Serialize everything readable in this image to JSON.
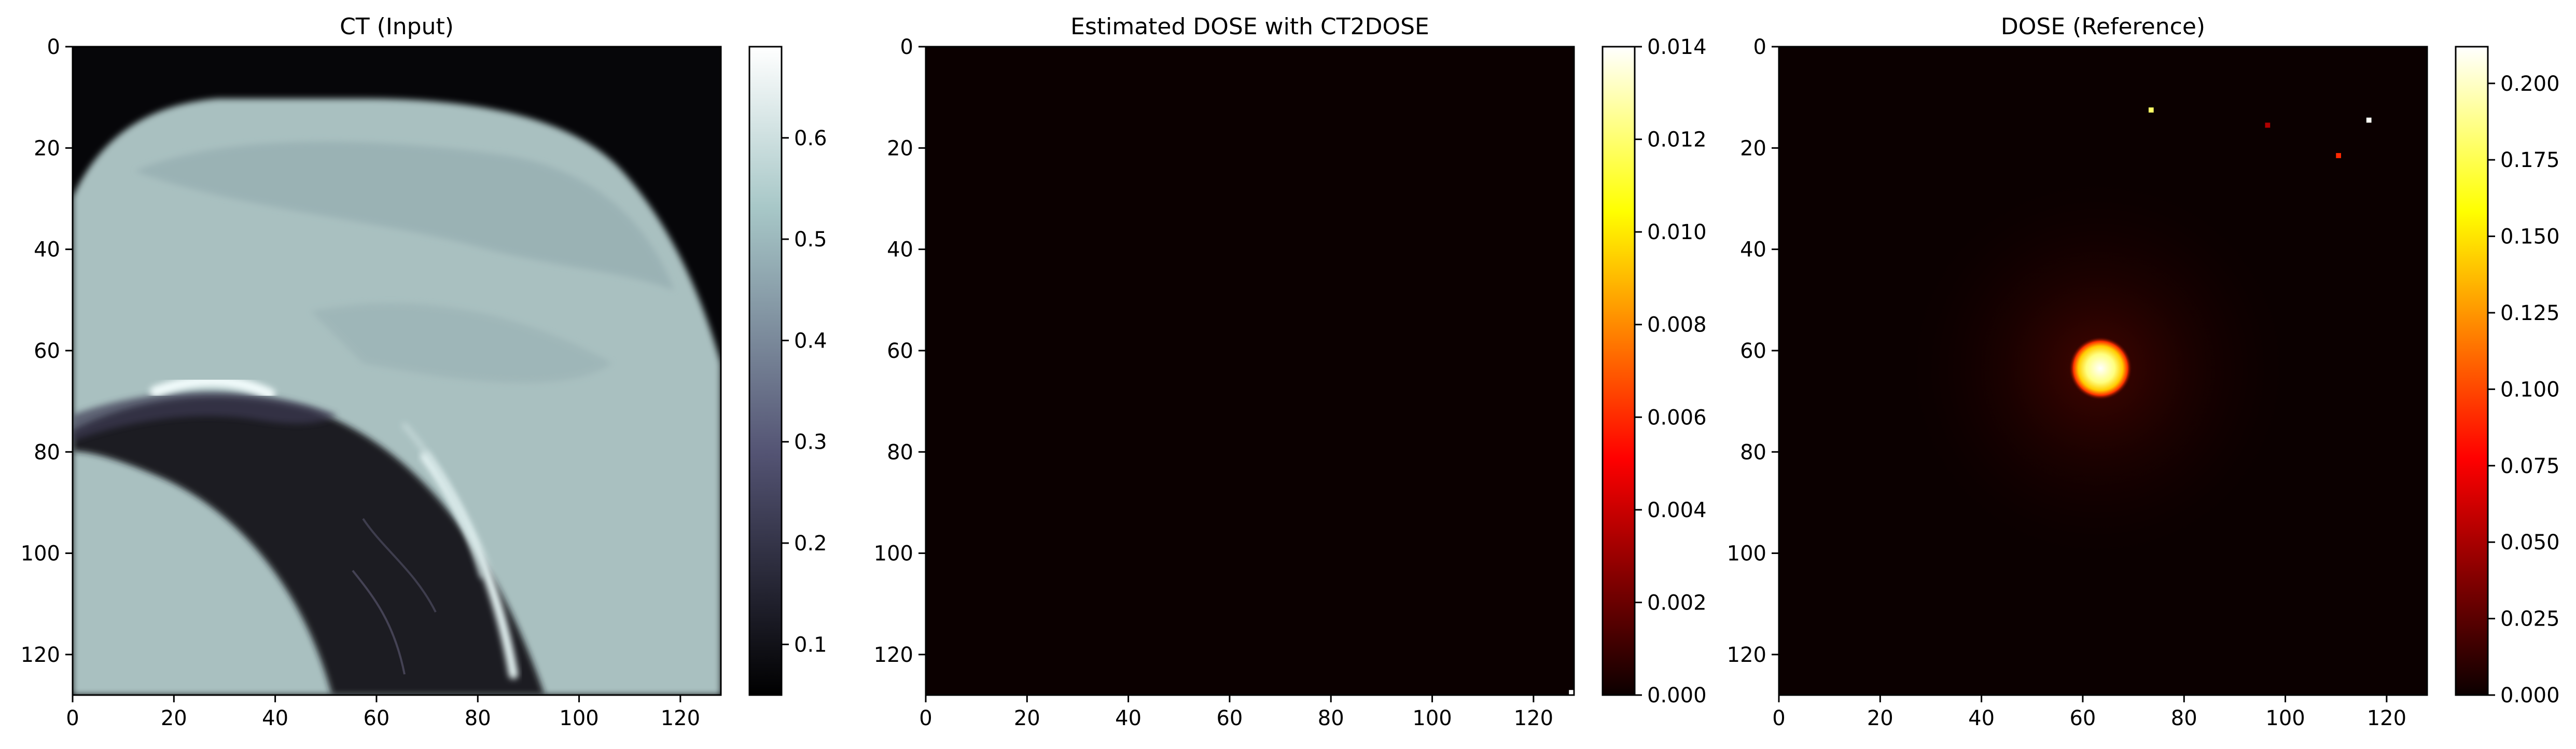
{
  "chart_data": [
    {
      "type": "heatmap",
      "title": "CT (Input)",
      "xlabel": "",
      "ylabel": "",
      "xlim": [
        0,
        128
      ],
      "ylim": [
        128,
        0
      ],
      "x_ticks": [
        0,
        20,
        40,
        60,
        80,
        100,
        120
      ],
      "y_ticks": [
        0,
        20,
        40,
        60,
        80,
        100,
        120
      ],
      "colormap": "bone",
      "colorbar": {
        "range": [
          0.05,
          0.69
        ],
        "ticks": [
          "0.1",
          "0.2",
          "0.3",
          "0.4",
          "0.5",
          "0.6"
        ],
        "tick_values": [
          0.1,
          0.2,
          0.3,
          0.4,
          0.5,
          0.6
        ]
      },
      "image_description_regions": {
        "background_value": 0.05,
        "body_value": 0.5,
        "soft_tissue_value": 0.45,
        "lung_value": 0.1,
        "bright_rim_value": 0.69
      }
    },
    {
      "type": "heatmap",
      "title": "Estimated DOSE with CT2DOSE",
      "xlabel": "",
      "ylabel": "",
      "xlim": [
        0,
        128
      ],
      "ylim": [
        128,
        0
      ],
      "x_ticks": [
        0,
        20,
        40,
        60,
        80,
        100,
        120
      ],
      "y_ticks": [
        0,
        20,
        40,
        60,
        80,
        100,
        120
      ],
      "colormap": "hot",
      "colorbar": {
        "range": [
          0.0,
          0.014
        ],
        "ticks": [
          "0.000",
          "0.002",
          "0.004",
          "0.006",
          "0.008",
          "0.010",
          "0.012",
          "0.014"
        ],
        "tick_values": [
          0,
          0.002,
          0.004,
          0.006,
          0.008,
          0.01,
          0.012,
          0.014
        ]
      },
      "hot_pixels": [
        {
          "x": 127,
          "y": 127,
          "value": 0.014
        }
      ]
    },
    {
      "type": "heatmap",
      "title": "DOSE (Reference)",
      "xlabel": "",
      "ylabel": "",
      "xlim": [
        0,
        128
      ],
      "ylim": [
        128,
        0
      ],
      "x_ticks": [
        0,
        20,
        40,
        60,
        80,
        100,
        120
      ],
      "y_ticks": [
        0,
        20,
        40,
        60,
        80,
        100,
        120
      ],
      "colormap": "hot",
      "colorbar": {
        "range": [
          0.0,
          0.212
        ],
        "ticks": [
          "0.000",
          "0.025",
          "0.050",
          "0.075",
          "0.100",
          "0.125",
          "0.150",
          "0.175",
          "0.200"
        ],
        "tick_values": [
          0,
          0.025,
          0.05,
          0.075,
          0.1,
          0.125,
          0.15,
          0.175,
          0.2
        ]
      },
      "hotspot": {
        "center": [
          63,
          63
        ],
        "radius": 5,
        "peak_value": 0.212
      },
      "hot_pixels": [
        {
          "x": 73,
          "y": 12,
          "value": 0.18
        },
        {
          "x": 96,
          "y": 15,
          "value": 0.05
        },
        {
          "x": 110,
          "y": 21,
          "value": 0.09
        },
        {
          "x": 116,
          "y": 14,
          "value": 0.21
        }
      ]
    }
  ]
}
